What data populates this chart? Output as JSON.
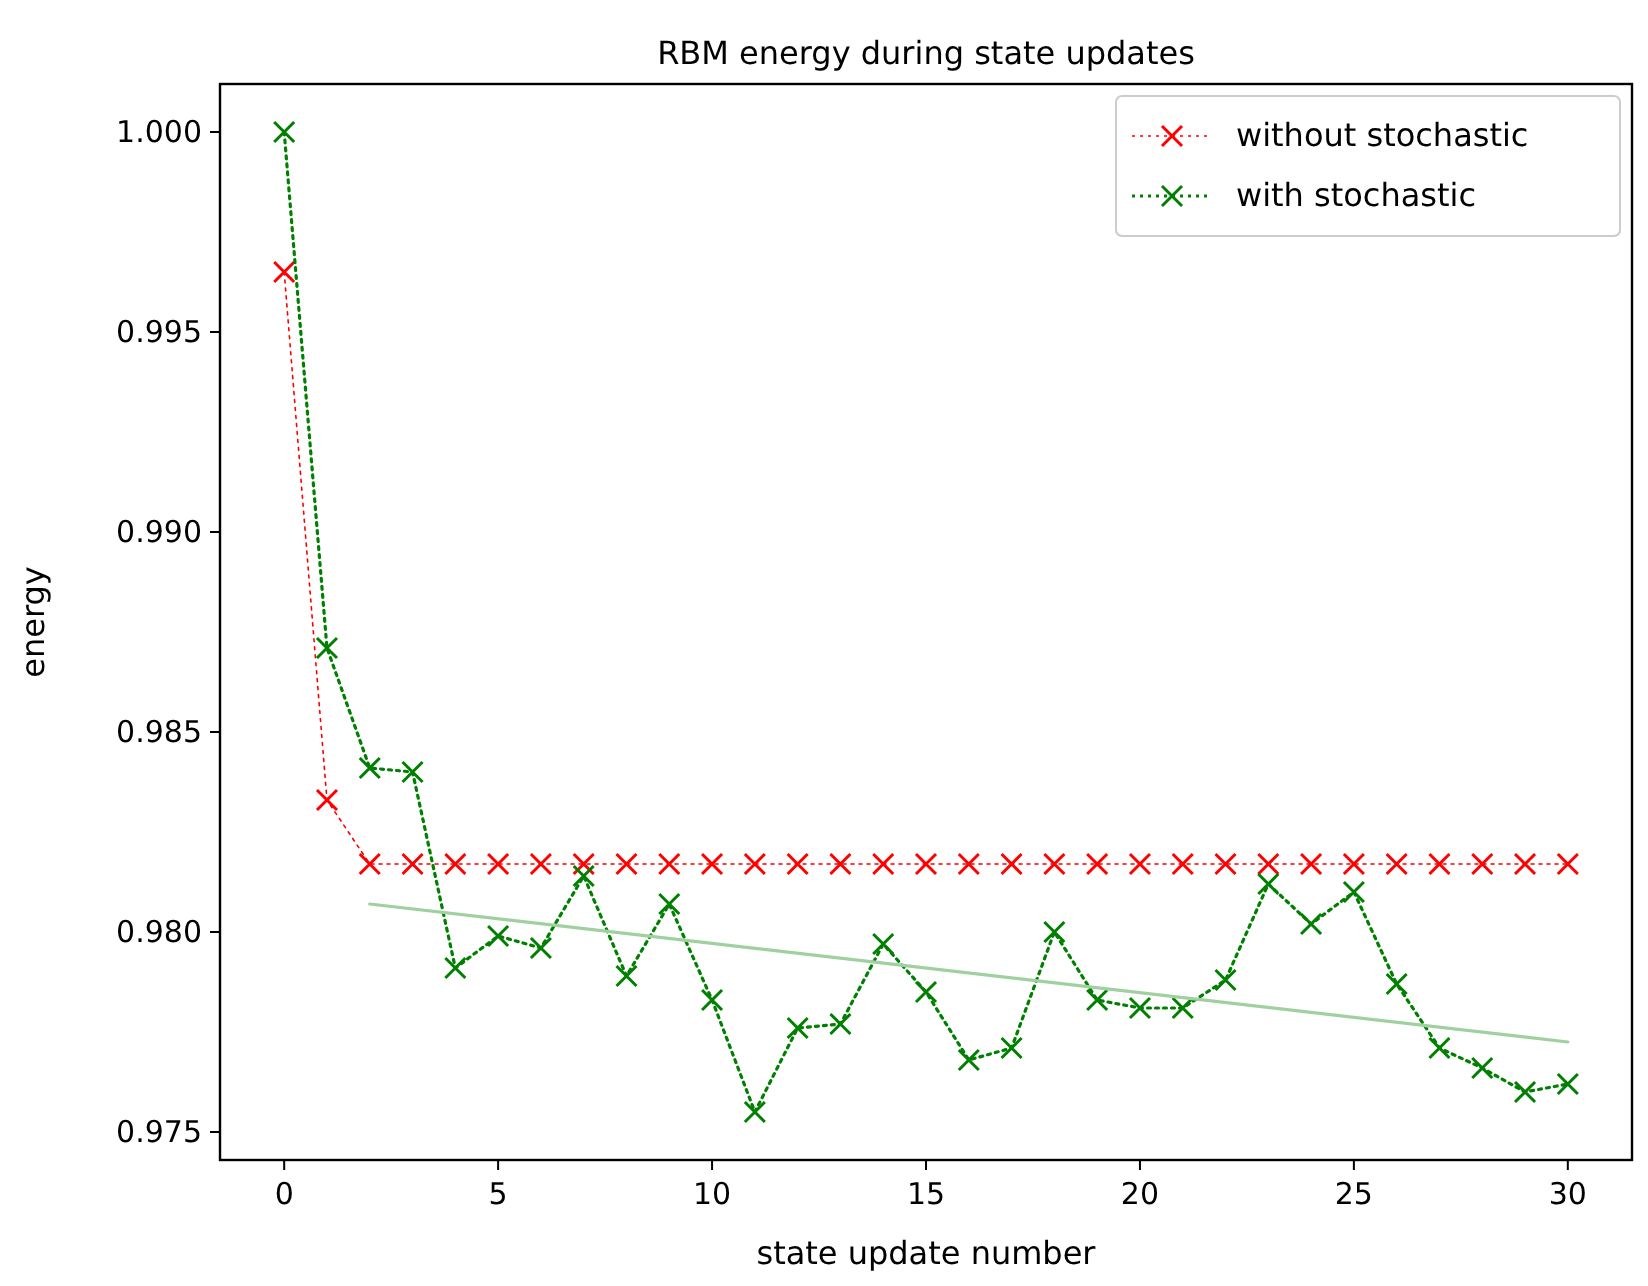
{
  "chart_data": {
    "type": "line",
    "title": "RBM energy during state updates",
    "xlabel": "state update number",
    "ylabel": "energy",
    "xlim": [
      -1.5,
      31.5
    ],
    "xticks": [
      0,
      5,
      10,
      15,
      20,
      25,
      30
    ],
    "ylim": [
      0.9743,
      1.0012
    ],
    "yticks": [
      {
        "value": 0.975,
        "label": "0.975"
      },
      {
        "value": 0.98,
        "label": "0.980"
      },
      {
        "value": 0.985,
        "label": "0.985"
      },
      {
        "value": 0.99,
        "label": "0.990"
      },
      {
        "value": 0.995,
        "label": "0.995"
      },
      {
        "value": 1.0,
        "label": "1.000"
      }
    ],
    "x": [
      0,
      1,
      2,
      3,
      4,
      5,
      6,
      7,
      8,
      9,
      10,
      11,
      12,
      13,
      14,
      15,
      16,
      17,
      18,
      19,
      20,
      21,
      22,
      23,
      24,
      25,
      26,
      27,
      28,
      29,
      30
    ],
    "series": [
      {
        "name": "without stochastic",
        "color": "#ff0000",
        "marker": "cross",
        "line_style": "dotted",
        "values": [
          0.9965,
          0.9833,
          0.9817,
          0.9817,
          0.9817,
          0.9817,
          0.9817,
          0.9817,
          0.9817,
          0.9817,
          0.9817,
          0.9817,
          0.9817,
          0.9817,
          0.9817,
          0.9817,
          0.9817,
          0.9817,
          0.9817,
          0.9817,
          0.9817,
          0.9817,
          0.9817,
          0.9817,
          0.9817,
          0.9817,
          0.9817,
          0.9817,
          0.9817,
          0.9817,
          0.9817
        ]
      },
      {
        "name": "with stochastic",
        "color": "#008000",
        "marker": "cross",
        "line_style": "dotted",
        "values": [
          1.0,
          0.9871,
          0.9841,
          0.984,
          0.9791,
          0.9799,
          0.9796,
          0.9814,
          0.9789,
          0.9807,
          0.9783,
          0.9755,
          0.9776,
          0.9777,
          0.9797,
          0.9785,
          0.9768,
          0.9771,
          0.98,
          0.9783,
          0.9781,
          0.9781,
          0.9788,
          0.9812,
          0.9802,
          0.981,
          0.9787,
          0.9771,
          0.9766,
          0.976,
          0.9762
        ]
      },
      {
        "type": "line",
        "color": "#a0d0a0",
        "marker": "none",
        "line_style": "solid",
        "x": [
          2,
          30
        ],
        "values": [
          0.9807,
          0.97725
        ]
      }
    ],
    "legend": "top right",
    "grid": false
  }
}
